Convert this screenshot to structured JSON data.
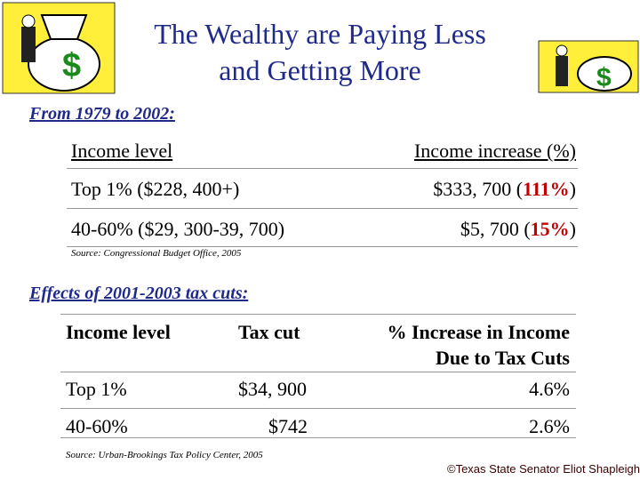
{
  "header": {
    "title_lines": [
      "The Wealthy are Paying Less",
      "and Getting More"
    ]
  },
  "section1": {
    "heading": "From 1979 to 2002:",
    "table": {
      "columns": [
        "Income level",
        "Income increase (%)"
      ],
      "rows": [
        {
          "level": "Top 1%  ($228, 400+)",
          "increase": [
            "$333, 700 (",
            "111%",
            ")"
          ]
        },
        {
          "level": "40-60%  ($29, 300-39, 700)",
          "increase": [
            "$5, 700 (",
            "15%",
            ")"
          ]
        }
      ]
    },
    "source": "Source:  Congressional Budget Office, 2005"
  },
  "section2": {
    "heading": "Effects of 2001-2003 tax cuts:",
    "table": {
      "columns": [
        "Income level",
        "Tax cut",
        [
          "% Increase in Income",
          "Due to Tax Cuts"
        ]
      ],
      "rows": [
        [
          "Top 1%",
          "$34, 900",
          "4.6%"
        ],
        [
          "40-60%",
          "$742",
          "2.6%"
        ]
      ]
    },
    "source": "Source:  Urban-Brookings Tax Policy Center, 2005"
  },
  "footer": {
    "copyright": "©Texas State Senator Eliot Shapleigh"
  }
}
